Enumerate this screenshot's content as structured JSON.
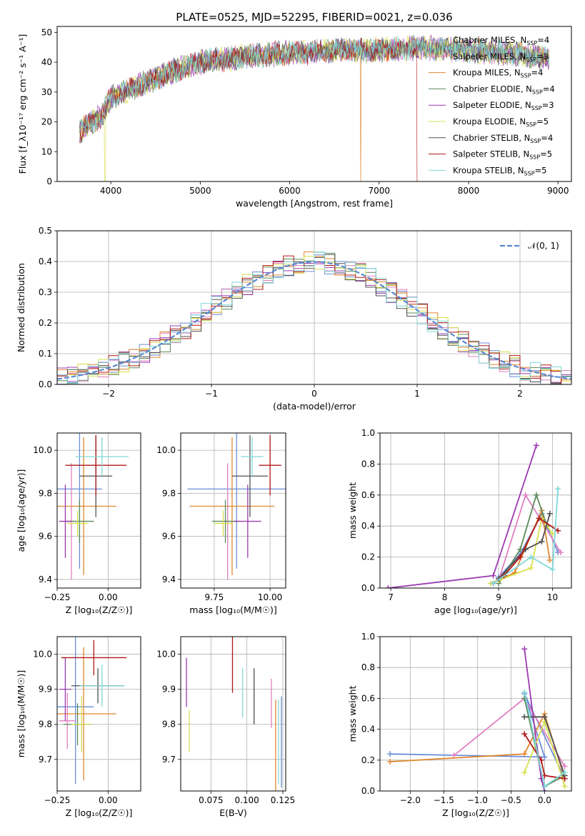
{
  "figure_title": "PLATE=0525, MJD=52295, FIBERID=0021, z=0.036",
  "palette": [
    "#6c8ed8",
    "#e080c0",
    "#e08830",
    "#5a8a5a",
    "#9a3ab0",
    "#d8e050",
    "#505050",
    "#b01818",
    "#80d8d8"
  ],
  "chart_data": [
    {
      "id": "spectrum",
      "type": "line",
      "title": "PLATE=0525, MJD=52295, FIBERID=0021, z=0.036",
      "xlabel": "wavelength [Angstrom, rest frame]",
      "ylabel": "Flux [f_λ10⁻¹⁷ erg cm⁻² s⁻¹ A⁻¹]",
      "xlim": [
        3400,
        9150
      ],
      "ylim": [
        0,
        52
      ],
      "xticks": [
        "4000",
        "5000",
        "6000",
        "7000",
        "8000",
        "9000"
      ],
      "yticks": [
        "0",
        "10",
        "20",
        "30",
        "40",
        "50"
      ],
      "grid": false,
      "legend": "top-right",
      "x_range_data": [
        3650,
        8900
      ],
      "continuum": {
        "x": [
          3650,
          3900,
          4000,
          4300,
          4700,
          5000,
          5500,
          6000,
          6500,
          7000,
          7500,
          8000,
          8500,
          8900
        ],
        "y": [
          17,
          22,
          28,
          32,
          37,
          40,
          42,
          43,
          44,
          44,
          45,
          44,
          43,
          41
        ]
      },
      "series": [
        {
          "name": "Chabrier MILES, N_SSP=4",
          "color": "#6c8ed8"
        },
        {
          "name": "Salpeter MILES, N_SSP=3",
          "color": "#e080c0"
        },
        {
          "name": "Kroupa MILES, N_SSP=4",
          "color": "#e08830"
        },
        {
          "name": "Chabrier ELODIE, N_SSP=4",
          "color": "#5a8a5a"
        },
        {
          "name": "Salpeter ELODIE, N_SSP=3",
          "color": "#9a3ab0"
        },
        {
          "name": "Kroupa ELODIE, N_SSP=5",
          "color": "#d8e050"
        },
        {
          "name": "Chabrier STELIB, N_SSP=4",
          "color": "#505050"
        },
        {
          "name": "Salpeter STELIB, N_SSP=5",
          "color": "#b01818"
        },
        {
          "name": "Kroupa STELIB, N_SSP=5",
          "color": "#80d8d8"
        }
      ]
    },
    {
      "id": "residuals",
      "type": "line",
      "xlabel": "(data-model)/error",
      "ylabel": "Normed distribution",
      "xlim": [
        -2.5,
        2.5
      ],
      "ylim": [
        0,
        0.5
      ],
      "xticks": [
        "−2",
        "−1",
        "0",
        "1",
        "2"
      ],
      "yticks": [
        "0.0",
        "0.1",
        "0.2",
        "0.3",
        "0.4",
        "0.5"
      ],
      "grid": true,
      "legend": "top-right",
      "reference_curve": {
        "name": "𝒩(0, 1)",
        "mean": 0,
        "sigma": 1,
        "color": "#5a8ad0"
      },
      "bin_width": 0.1
    },
    {
      "id": "age_vs_Z",
      "type": "scatter",
      "xlabel": "Z [log₁₀(Z/Z☉)]",
      "ylabel": "age  [log₁₀(age/yr)]",
      "xlim": [
        -0.25,
        0.16
      ],
      "ylim": [
        9.36,
        10.08
      ],
      "xticks": [
        "−0.25",
        "0.00"
      ],
      "yticks": [
        "9.4",
        "9.6",
        "9.8",
        "10.0"
      ],
      "grid": true,
      "errorbars": [
        {
          "x": -0.14,
          "xerr": 0.11,
          "y": 9.82,
          "yerr": 0.37,
          "color": "#6c8ed8"
        },
        {
          "x": -0.18,
          "xerr": 0.03,
          "y": 9.67,
          "yerr": 0.27,
          "color": "#e080c0"
        },
        {
          "x": -0.12,
          "xerr": 0.16,
          "y": 9.74,
          "yerr": 0.32,
          "color": "#e08830"
        },
        {
          "x": -0.14,
          "xerr": 0.07,
          "y": 9.67,
          "yerr": 0.1,
          "color": "#5a8a5a"
        },
        {
          "x": -0.21,
          "xerr": 0.03,
          "y": 9.67,
          "yerr": 0.17,
          "color": "#9a3ab0"
        },
        {
          "x": -0.15,
          "xerr": 0.05,
          "y": 9.66,
          "yerr": 0.06,
          "color": "#d8e050"
        },
        {
          "x": -0.06,
          "xerr": 0.08,
          "y": 9.88,
          "yerr": 0.19,
          "color": "#505050"
        },
        {
          "x": -0.06,
          "xerr": 0.15,
          "y": 9.93,
          "yerr": 0.14,
          "color": "#b01818"
        },
        {
          "x": -0.03,
          "xerr": 0.13,
          "y": 9.97,
          "yerr": 0.09,
          "color": "#80d8d8"
        }
      ]
    },
    {
      "id": "age_vs_mass",
      "type": "scatter",
      "xlabel": "mass [log₁₀(M/M☉)]",
      "ylabel": "",
      "xlim": [
        9.6,
        10.07
      ],
      "ylim": [
        9.36,
        10.08
      ],
      "xticks": [
        "9.75",
        "10.00"
      ],
      "yticks": [
        "9.4",
        "9.6",
        "9.8",
        "10.0"
      ],
      "grid": true,
      "errorbars": [
        {
          "x": 9.85,
          "xerr": 0.22,
          "y": 9.82,
          "yerr": 0.37,
          "color": "#6c8ed8"
        },
        {
          "x": 9.81,
          "xerr": 0.02,
          "y": 9.67,
          "yerr": 0.27,
          "color": "#e080c0"
        },
        {
          "x": 9.83,
          "xerr": 0.19,
          "y": 9.74,
          "yerr": 0.32,
          "color": "#e08830"
        },
        {
          "x": 9.8,
          "xerr": 0.06,
          "y": 9.67,
          "yerr": 0.1,
          "color": "#5a8a5a"
        },
        {
          "x": 9.9,
          "xerr": 0.06,
          "y": 9.67,
          "yerr": 0.17,
          "color": "#9a3ab0"
        },
        {
          "x": 9.79,
          "xerr": 0.04,
          "y": 9.66,
          "yerr": 0.06,
          "color": "#d8e050"
        },
        {
          "x": 9.91,
          "xerr": 0.08,
          "y": 9.88,
          "yerr": 0.19,
          "color": "#505050"
        },
        {
          "x": 10.0,
          "xerr": 0.05,
          "y": 9.93,
          "yerr": 0.14,
          "color": "#b01818"
        },
        {
          "x": 9.92,
          "xerr": 0.05,
          "y": 9.97,
          "yerr": 0.09,
          "color": "#80d8d8"
        }
      ]
    },
    {
      "id": "massweight_vs_age",
      "type": "line",
      "xlabel": "age  [log₁₀(age/yr)]",
      "ylabel": "mass weight",
      "xlim": [
        6.8,
        10.35
      ],
      "ylim": [
        0,
        1.0
      ],
      "xticks": [
        "7",
        "8",
        "9",
        "10"
      ],
      "yticks": [
        "0.0",
        "0.2",
        "0.4",
        "0.6",
        "0.8",
        "1.0"
      ],
      "grid": true,
      "series": [
        {
          "color": "#6c8ed8",
          "x": [
            9.0,
            9.4,
            9.8,
            10.1
          ],
          "y": [
            0.07,
            0.22,
            0.48,
            0.23
          ]
        },
        {
          "color": "#e080c0",
          "x": [
            9.0,
            9.5,
            10.15
          ],
          "y": [
            0.05,
            0.6,
            0.23
          ]
        },
        {
          "color": "#e08830",
          "x": [
            9.0,
            9.3,
            9.8,
            9.95
          ],
          "y": [
            0.05,
            0.1,
            0.5,
            0.18
          ]
        },
        {
          "color": "#5a8a5a",
          "x": [
            9.0,
            9.4,
            9.7,
            9.9
          ],
          "y": [
            0.03,
            0.25,
            0.6,
            0.4
          ]
        },
        {
          "color": "#9a3ab0",
          "x": [
            6.95,
            8.9,
            9.7
          ],
          "y": [
            0.0,
            0.08,
            0.92
          ]
        },
        {
          "color": "#d8e050",
          "x": [
            8.85,
            9.0,
            9.6,
            9.8,
            10.0
          ],
          "y": [
            0.03,
            0.05,
            0.13,
            0.45,
            0.35
          ]
        },
        {
          "color": "#505050",
          "x": [
            9.0,
            9.5,
            9.8,
            9.95
          ],
          "y": [
            0.06,
            0.25,
            0.3,
            0.48
          ]
        },
        {
          "color": "#b01818",
          "x": [
            8.9,
            9.1,
            9.4,
            9.75,
            10.1
          ],
          "y": [
            0.03,
            0.08,
            0.2,
            0.45,
            0.37
          ]
        },
        {
          "color": "#80d8d8",
          "x": [
            8.9,
            9.6,
            10.0,
            10.1
          ],
          "y": [
            0.03,
            0.2,
            0.12,
            0.64
          ]
        }
      ]
    },
    {
      "id": "mass_vs_Z",
      "type": "scatter",
      "xlabel": "Z [log₁₀(Z/Z☉)]",
      "ylabel": "mass [log₁₀(M/M☉)]",
      "xlim": [
        -0.25,
        0.16
      ],
      "ylim": [
        9.61,
        10.05
      ],
      "xticks": [
        "−0.25",
        "0.00"
      ],
      "yticks": [
        "9.7",
        "9.8",
        "9.9",
        "10.0"
      ],
      "grid": true,
      "errorbars": [
        {
          "x": -0.16,
          "xerr": 0.09,
          "y": 9.85,
          "yerr": 0.22,
          "color": "#6c8ed8"
        },
        {
          "x": -0.2,
          "xerr": 0.04,
          "y": 9.81,
          "yerr": 0.08,
          "color": "#e080c0"
        },
        {
          "x": -0.12,
          "xerr": 0.16,
          "y": 9.83,
          "yerr": 0.19,
          "color": "#e08830"
        },
        {
          "x": -0.15,
          "xerr": 0.07,
          "y": 9.8,
          "yerr": 0.06,
          "color": "#5a8a5a"
        },
        {
          "x": -0.21,
          "xerr": 0.03,
          "y": 9.9,
          "yerr": 0.09,
          "color": "#9a3ab0"
        },
        {
          "x": -0.13,
          "xerr": 0.05,
          "y": 9.8,
          "yerr": 0.08,
          "color": "#d8e050"
        },
        {
          "x": -0.05,
          "xerr": 0.13,
          "y": 9.91,
          "yerr": 0.05,
          "color": "#505050"
        },
        {
          "x": -0.07,
          "xerr": 0.16,
          "y": 9.99,
          "yerr": 0.05,
          "color": "#b01818"
        },
        {
          "x": -0.03,
          "xerr": 0.11,
          "y": 9.91,
          "yerr": 0.06,
          "color": "#80d8d8"
        }
      ]
    },
    {
      "id": "mass_vs_ebv",
      "type": "scatter",
      "xlabel": "E(B-V)",
      "ylabel": "",
      "xlim": [
        0.054,
        0.127
      ],
      "ylim": [
        9.61,
        10.05
      ],
      "xticks": [
        "0.075",
        "0.100",
        "0.125"
      ],
      "yticks": [
        "9.7",
        "9.8",
        "9.9",
        "10.0"
      ],
      "grid": true,
      "errorbars": [
        {
          "x": 0.124,
          "xerr": 0,
          "y": 9.75,
          "yerr": 0.13,
          "color": "#6c8ed8"
        },
        {
          "x": 0.117,
          "xerr": 0,
          "y": 9.86,
          "yerr": 0.07,
          "color": "#e080c0"
        },
        {
          "x": 0.12,
          "xerr": 0,
          "y": 9.74,
          "yerr": 0.13,
          "color": "#e08830"
        },
        {
          "x": 0.06,
          "xerr": 0,
          "y": 9.78,
          "yerr": 0.06,
          "color": "#d8e050"
        },
        {
          "x": 0.058,
          "xerr": 0,
          "y": 9.92,
          "yerr": 0.07,
          "color": "#9a3ab0"
        },
        {
          "x": 0.105,
          "xerr": 0,
          "y": 9.88,
          "yerr": 0.08,
          "color": "#505050"
        },
        {
          "x": 0.09,
          "xerr": 0,
          "y": 9.97,
          "yerr": 0.08,
          "color": "#b01818"
        },
        {
          "x": 0.097,
          "xerr": 0,
          "y": 9.89,
          "yerr": 0.07,
          "color": "#80d8d8"
        },
        {
          "x": 0.122,
          "xerr": 0,
          "y": 9.75,
          "yerr": 0.12,
          "color": "#80d8d8"
        }
      ]
    },
    {
      "id": "massweight_vs_Z",
      "type": "line",
      "xlabel": "Z [log₁₀(Z/Z☉)]",
      "ylabel": "mass weight",
      "xlim": [
        -2.45,
        0.4
      ],
      "ylim": [
        0,
        1.0
      ],
      "xticks": [
        "−2.0",
        "−1.5",
        "−1.0",
        "−0.5",
        "0.0"
      ],
      "yticks": [
        "0.0",
        "0.2",
        "0.4",
        "0.6",
        "0.8",
        "1.0"
      ],
      "grid": true,
      "series": [
        {
          "color": "#6c8ed8",
          "x": [
            -2.3,
            0.0,
            -0.3,
            0.3
          ],
          "y": [
            0.24,
            0.22,
            0.63,
            0.08
          ]
        },
        {
          "color": "#e080c0",
          "x": [
            -1.35,
            -0.3,
            0.3
          ],
          "y": [
            0.23,
            0.6,
            0.16
          ]
        },
        {
          "color": "#e08830",
          "x": [
            -2.3,
            -0.3,
            0.0,
            0.3
          ],
          "y": [
            0.19,
            0.24,
            0.5,
            0.08
          ]
        },
        {
          "color": "#5a8a5a",
          "x": [
            -0.3,
            0.0,
            0.3
          ],
          "y": [
            0.6,
            0.03,
            0.1
          ]
        },
        {
          "color": "#9a3ab0",
          "x": [
            -0.3,
            -0.05,
            0.0
          ],
          "y": [
            0.92,
            0.08,
            0.0
          ]
        },
        {
          "color": "#d8e050",
          "x": [
            -0.3,
            0.0,
            0.3
          ],
          "y": [
            0.12,
            0.45,
            0.03
          ]
        },
        {
          "color": "#505050",
          "x": [
            -0.3,
            0.0,
            0.3
          ],
          "y": [
            0.48,
            0.48,
            0.1
          ]
        },
        {
          "color": "#b01818",
          "x": [
            -0.3,
            -0.05,
            0.0,
            0.3
          ],
          "y": [
            0.37,
            0.2,
            0.1,
            0.08
          ]
        },
        {
          "color": "#80d8d8",
          "x": [
            -0.3,
            0.0,
            0.3
          ],
          "y": [
            0.64,
            0.03,
            0.12
          ]
        }
      ]
    }
  ]
}
